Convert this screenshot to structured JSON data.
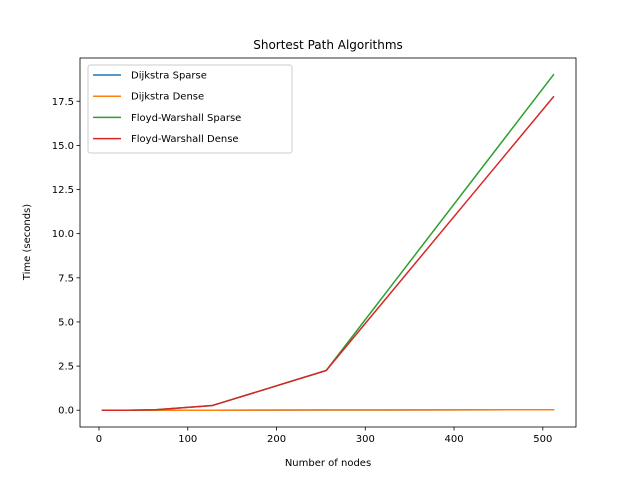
{
  "chart_data": {
    "type": "line",
    "title": "Shortest Path Algorithms",
    "xlabel": "Number of nodes",
    "ylabel": "Time (seconds)",
    "xlim": [
      -21.4,
      537.4
    ],
    "ylim": [
      -0.95,
      19.95
    ],
    "xticks": [
      0,
      100,
      200,
      300,
      400,
      500
    ],
    "xtick_labels": [
      "0",
      "100",
      "200",
      "300",
      "400",
      "500"
    ],
    "yticks": [
      0.0,
      2.5,
      5.0,
      7.5,
      10.0,
      12.5,
      15.0,
      17.5
    ],
    "ytick_labels": [
      "0.0",
      "2.5",
      "5.0",
      "7.5",
      "10.0",
      "12.5",
      "15.0",
      "17.5"
    ],
    "grid": false,
    "legend_position": "top-left",
    "x": [
      4,
      8,
      16,
      32,
      64,
      128,
      256,
      512
    ],
    "series": [
      {
        "name": "Dijkstra Sparse",
        "color": "#1f77b4",
        "values": [
          0.0,
          0.0,
          0.0,
          0.0,
          0.0,
          0.0,
          0.01,
          0.03
        ]
      },
      {
        "name": "Dijkstra Dense",
        "color": "#ff7f0e",
        "values": [
          0.0,
          0.0,
          0.0,
          0.0,
          0.0,
          0.0,
          0.01,
          0.03
        ]
      },
      {
        "name": "Floyd-Warshall Sparse",
        "color": "#2ca02c",
        "values": [
          0.0,
          0.0,
          0.0,
          0.0,
          0.03,
          0.27,
          2.25,
          19.0
        ]
      },
      {
        "name": "Floyd-Warshall Dense",
        "color": "#d62728",
        "values": [
          0.0,
          0.0,
          0.0,
          0.0,
          0.03,
          0.27,
          2.25,
          17.75
        ]
      }
    ]
  }
}
